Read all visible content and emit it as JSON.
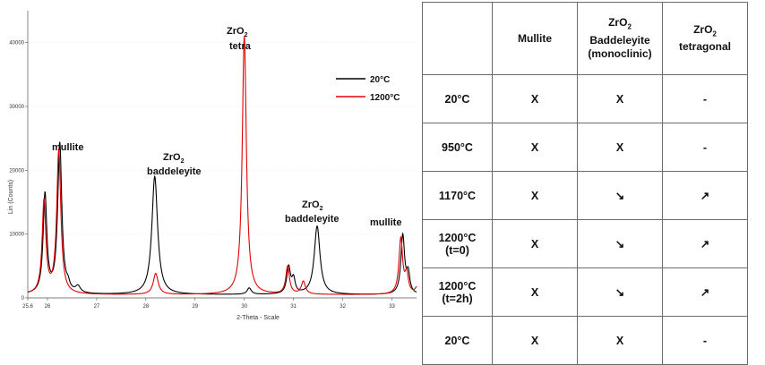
{
  "chart_data": {
    "type": "line",
    "xlabel": "2-Theta - Scale",
    "ylabel": "Lin (Counts)",
    "xlim": [
      25.6,
      33.5
    ],
    "ylim": [
      0,
      45000
    ],
    "x_ticks": [
      {
        "value": 25.6,
        "label": "25.6"
      },
      {
        "value": 26,
        "label": "26"
      },
      {
        "value": 27,
        "label": "27"
      },
      {
        "value": 28,
        "label": "28"
      },
      {
        "value": 29,
        "label": "29"
      },
      {
        "value": 30,
        "label": "30"
      },
      {
        "value": 31,
        "label": "31"
      },
      {
        "value": 32,
        "label": "32"
      },
      {
        "value": 33,
        "label": "33"
      }
    ],
    "y_ticks": [
      {
        "value": 0,
        "label": "0"
      },
      {
        "value": 10000,
        "label": "10000"
      },
      {
        "value": 20000,
        "label": "20000"
      },
      {
        "value": 30000,
        "label": "30000"
      },
      {
        "value": 40000,
        "label": "40000"
      }
    ],
    "legend": {
      "position": "top-right"
    },
    "series": [
      {
        "name": "20°C",
        "color": "#000000",
        "baseline": 500,
        "peaks": [
          {
            "x": 25.95,
            "height": 15500,
            "width": 0.045
          },
          {
            "x": 26.25,
            "height": 23500,
            "width": 0.05
          },
          {
            "x": 26.42,
            "height": 900,
            "width": 0.04
          },
          {
            "x": 26.62,
            "height": 1000,
            "width": 0.06
          },
          {
            "x": 28.18,
            "height": 18500,
            "width": 0.07
          },
          {
            "x": 30.1,
            "height": 1000,
            "width": 0.05
          },
          {
            "x": 30.9,
            "height": 4200,
            "width": 0.045
          },
          {
            "x": 31.0,
            "height": 2200,
            "width": 0.04
          },
          {
            "x": 31.48,
            "height": 10700,
            "width": 0.07
          },
          {
            "x": 33.22,
            "height": 9200,
            "width": 0.045
          },
          {
            "x": 33.33,
            "height": 3000,
            "width": 0.04
          }
        ]
      },
      {
        "name": "1200°C",
        "color": "#e00000",
        "baseline": 500,
        "peaks": [
          {
            "x": 25.93,
            "height": 14500,
            "width": 0.045
          },
          {
            "x": 26.23,
            "height": 22500,
            "width": 0.05
          },
          {
            "x": 28.2,
            "height": 3300,
            "width": 0.06
          },
          {
            "x": 30.0,
            "height": 40500,
            "width": 0.05
          },
          {
            "x": 30.88,
            "height": 4300,
            "width": 0.045
          },
          {
            "x": 31.2,
            "height": 2000,
            "width": 0.05
          },
          {
            "x": 33.18,
            "height": 8700,
            "width": 0.045
          },
          {
            "x": 33.3,
            "height": 3000,
            "width": 0.04
          },
          {
            "x": 33.52,
            "height": 1200,
            "width": 0.05
          }
        ]
      }
    ],
    "annotations": [
      {
        "text": "mullite",
        "sub": ""
      },
      {
        "text": "ZrO",
        "sub": "2",
        "line2": "baddeleyite"
      },
      {
        "text": "ZrO",
        "sub": "2",
        "line2": "tetra"
      },
      {
        "text": "ZrO",
        "sub": "2",
        "line2": "baddeleyite"
      },
      {
        "text": "mullite",
        "sub": ""
      }
    ]
  },
  "table": {
    "header_row": [
      "",
      "Mullite",
      "ZrO2 Baddeleyite (monoclinic)",
      "ZrO2 tetragonal"
    ],
    "headers": {
      "mullite": "Mullite",
      "badd_1": "ZrO",
      "badd_sub": "2",
      "badd_2": "Baddeleyite",
      "badd_3": "(monoclinic)",
      "tetra_1": "ZrO",
      "tetra_sub": "2",
      "tetra_2": "tetragonal"
    },
    "rows": [
      {
        "label": "20°C",
        "label2": "",
        "mullite": "X",
        "baddeleyite": "X",
        "tetragonal": "-"
      },
      {
        "label": "950°C",
        "label2": "",
        "mullite": "X",
        "baddeleyite": "X",
        "tetragonal": "-"
      },
      {
        "label": "1170°C",
        "label2": "",
        "mullite": "X",
        "baddeleyite": "↘",
        "tetragonal": "↗"
      },
      {
        "label": "1200°C",
        "label2": "(t=0)",
        "mullite": "X",
        "baddeleyite": "↘",
        "tetragonal": "↗"
      },
      {
        "label": "1200°C",
        "label2": "(t=2h)",
        "mullite": "X",
        "baddeleyite": "↘",
        "tetragonal": "↗"
      },
      {
        "label": "20°C",
        "label2": "",
        "mullite": "X",
        "baddeleyite": "X",
        "tetragonal": "-"
      }
    ]
  }
}
